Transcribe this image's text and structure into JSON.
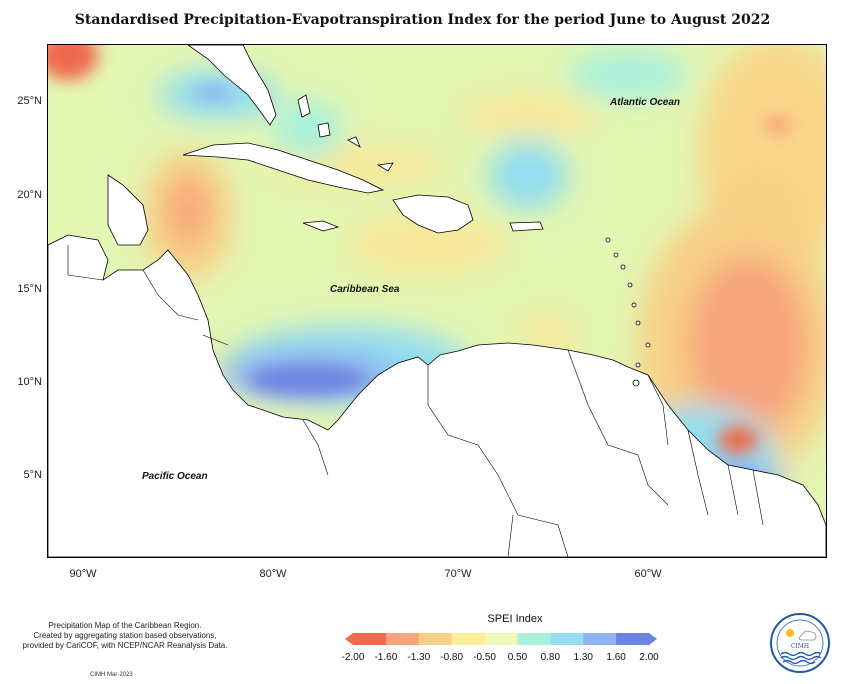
{
  "title": "Standardised Precipitation-Evapotranspiration Index for the period June to August 2022",
  "y_axis": [
    "25°N",
    "20°N",
    "15°N",
    "10°N",
    "5°N"
  ],
  "x_axis": [
    "90°W",
    "80°W",
    "70°W",
    "60°W"
  ],
  "regions": {
    "atlantic": "Atlantic Ocean",
    "caribbean": "Caribbean Sea",
    "pacific": "Pacific Ocean"
  },
  "footnote": {
    "line1": "Precipitation Map of the Caribbean Region.",
    "line2": "Created by aggregating station based observations,",
    "line3": "provided by CariCOF, with NCEP/NCAR Reanalysis Data."
  },
  "credit": "CIMH Mar-2023",
  "legend": {
    "title": "SPEI Index",
    "labels": [
      "-2.00",
      "-1.60",
      "-1.30",
      "-0.80",
      "-0.50",
      "0.50",
      "0.80",
      "1.30",
      "1.60",
      "2.00"
    ],
    "colors": [
      "#f06a4e",
      "#f7a57b",
      "#f8cf86",
      "#f8ef96",
      "#f0f8b8",
      "#dff5b0",
      "#a9f0dc",
      "#93def0",
      "#8fb3f0",
      "#6f84e0"
    ]
  },
  "logo_text": "CIMH",
  "colors": {
    "dry_extreme": "#f06a4e",
    "dry": "#f7a57b",
    "near_normal": "#dff5b0",
    "wet": "#93def0",
    "wet_extreme": "#6f6fe0"
  }
}
